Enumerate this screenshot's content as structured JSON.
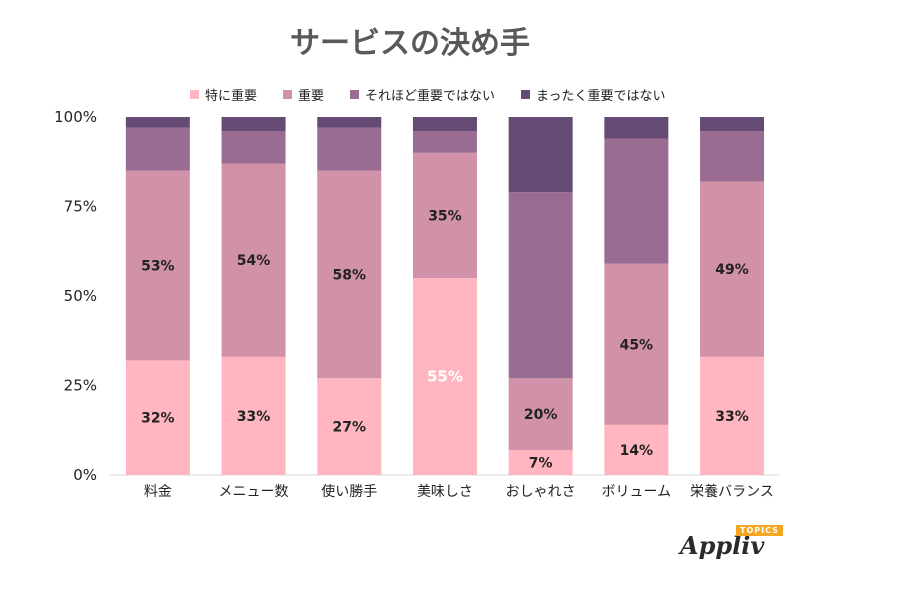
{
  "chart_data": {
    "type": "bar",
    "stacked": true,
    "percent": true,
    "title": "サービスの決め手",
    "categories": [
      "料金",
      "メニュー数",
      "使い勝手",
      "美味しさ",
      "おしゃれさ",
      "ボリューム",
      "栄養バランス"
    ],
    "series": [
      {
        "name": "特に重要",
        "color": "#FFB6C1",
        "values": [
          32,
          33,
          27,
          55,
          7,
          14,
          33
        ]
      },
      {
        "name": "重要",
        "color": "#D191A8",
        "values": [
          53,
          54,
          58,
          35,
          20,
          45,
          49
        ]
      },
      {
        "name": "それほど重要ではない",
        "color": "#9B6C92",
        "values": [
          12,
          9,
          12,
          6,
          52,
          35,
          14
        ]
      },
      {
        "name": "まったく重要ではない",
        "color": "#654A73",
        "values": [
          3,
          4,
          3,
          4,
          21,
          6,
          4
        ]
      }
    ],
    "data_labels": {
      "series_indices": [
        0,
        1
      ],
      "values": [
        [
          "32%",
          "33%",
          "27%",
          "55%",
          "7%",
          "14%",
          "33%"
        ],
        [
          "53%",
          "54%",
          "58%",
          "35%",
          "20%",
          "45%",
          "49%"
        ]
      ]
    },
    "yticks": [
      "0%",
      "25%",
      "50%",
      "75%",
      "100%"
    ],
    "ylim": [
      0,
      100
    ],
    "legend_position": "top",
    "grid": false
  },
  "logo": {
    "text": "Appliv",
    "badge": "TOPICS"
  }
}
